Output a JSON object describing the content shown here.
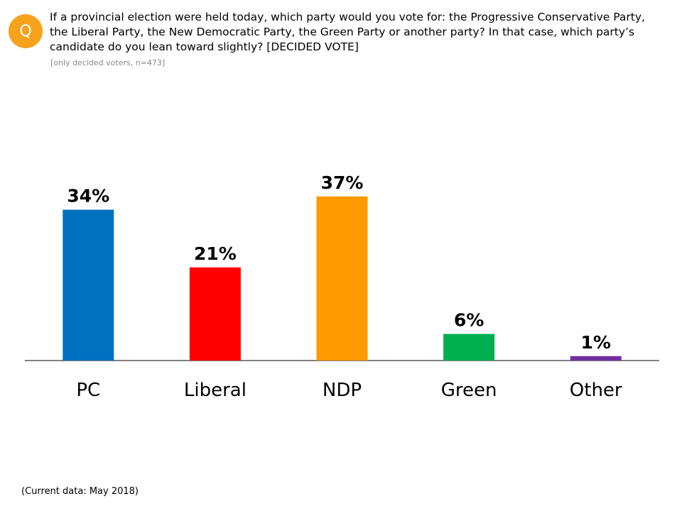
{
  "header": {
    "badge_letter": "Q",
    "question": "If a provincial election were held today, which party would you vote for: the Progressive Conservative Party, the Liberal Party, the New Democratic Party, the Green Party or another party? In that case, which party’s candidate do you lean toward slightly?  [DECIDED VOTE]",
    "base_note": "[only decided voters, n=473]",
    "badge_color": "#f7a21b"
  },
  "chart_data": {
    "type": "bar",
    "title": "",
    "xlabel": "",
    "ylabel": "",
    "ylim": [
      0,
      40
    ],
    "grid": false,
    "legend": "none",
    "value_suffix": "%",
    "categories": [
      "PC",
      "Liberal",
      "NDP",
      "Green",
      "Other"
    ],
    "values": [
      34,
      21,
      37,
      6,
      1
    ],
    "colors": [
      "#0070c0",
      "#ff0000",
      "#ff9900",
      "#00b050",
      "#7030a0"
    ]
  },
  "footer": {
    "note": "(Current data: May 2018)"
  }
}
